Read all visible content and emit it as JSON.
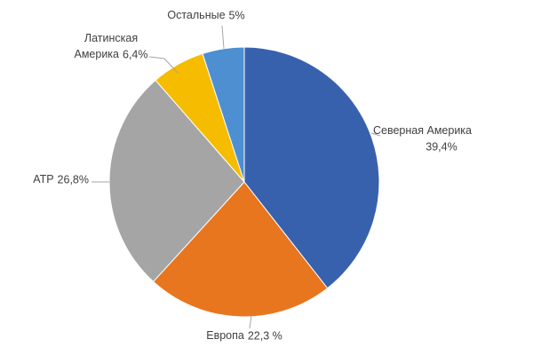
{
  "chart_data": {
    "type": "pie",
    "categories": [
      "Северная Америка",
      "Европа",
      "АТР",
      "Латинская\nАмерика",
      "Остальные"
    ],
    "values": [
      39.4,
      22.3,
      26.8,
      6.4,
      5
    ],
    "value_labels": [
      "39,4%",
      "22,3 %",
      "26,8%",
      "6,4%",
      "5%"
    ],
    "colors": [
      "#3861ad",
      "#e8761f",
      "#a5a5a5",
      "#f5bc00",
      "#4e8fd2"
    ]
  }
}
